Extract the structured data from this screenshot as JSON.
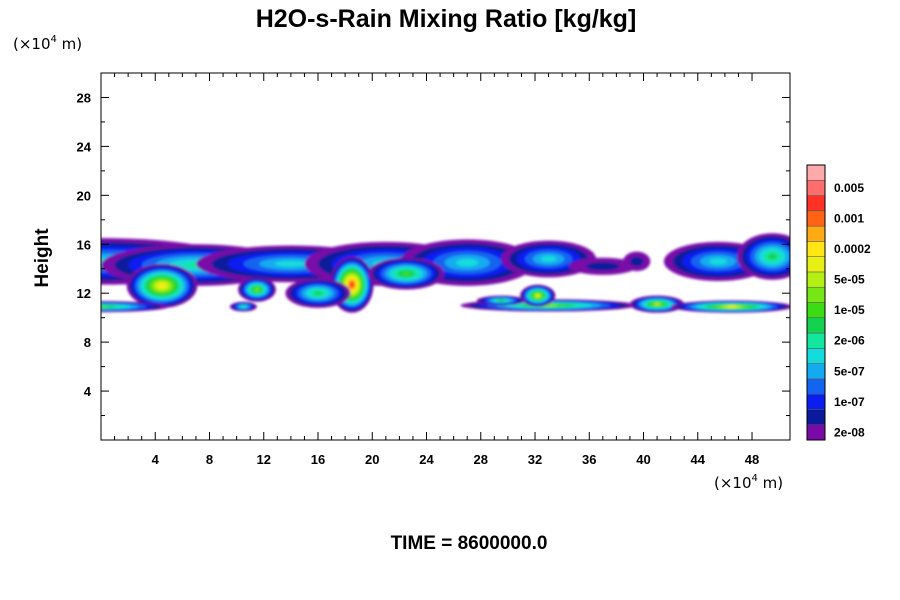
{
  "chart_data": {
    "type": "heatmap",
    "title": "H2O-s-Rain Mixing Ratio [kg/kg]",
    "ylabel": "Height",
    "xlabel": "",
    "x_unit": {
      "prefix": "(×10",
      "exp": "4",
      "suffix": " m)"
    },
    "y_unit": {
      "prefix": "(×10",
      "exp": "4",
      "suffix": " m)"
    },
    "xlim": [
      0,
      50.8
    ],
    "ylim": [
      0,
      30
    ],
    "x_ticks": [
      4,
      8,
      12,
      16,
      20,
      24,
      28,
      32,
      36,
      40,
      44,
      48
    ],
    "x_tick_labels": [
      "4",
      "8",
      "12",
      "16",
      "20",
      "24",
      "28",
      "32",
      "36",
      "40",
      "44",
      "48"
    ],
    "y_ticks": [
      4,
      8,
      12,
      16,
      20,
      24,
      28
    ],
    "y_tick_labels": [
      "4",
      "8",
      "12",
      "16",
      "20",
      "24",
      "28"
    ],
    "levels": [
      {
        "color": "#7a0aa8",
        "label": "2e-08"
      },
      {
        "color": "#0a1a9a",
        "label": ""
      },
      {
        "color": "#0a1ef0",
        "label": "1e-07"
      },
      {
        "color": "#1464f0",
        "label": ""
      },
      {
        "color": "#14aaf0",
        "label": "5e-07"
      },
      {
        "color": "#14dcdc",
        "label": ""
      },
      {
        "color": "#14e6a0",
        "label": "2e-06"
      },
      {
        "color": "#14d250",
        "label": ""
      },
      {
        "color": "#3cdc14",
        "label": "1e-05"
      },
      {
        "color": "#78e614",
        "label": ""
      },
      {
        "color": "#b4f014",
        "label": "5e-05"
      },
      {
        "color": "#e6f014",
        "label": ""
      },
      {
        "color": "#ffe614",
        "label": "0.0002"
      },
      {
        "color": "#ffaa14",
        "label": ""
      },
      {
        "color": "#ff6414",
        "label": "0.001"
      },
      {
        "color": "#ff3228",
        "label": ""
      },
      {
        "color": "#ff6e6e",
        "label": "0.005"
      },
      {
        "color": "#ffaaaa",
        "label": ""
      }
    ],
    "blobs": [
      {
        "x": 0.0,
        "y": 14.6,
        "rx": 10,
        "ry": 1.9,
        "v": 5
      },
      {
        "x": 7.0,
        "y": 14.3,
        "rx": 7.0,
        "ry": 1.7,
        "v": 6
      },
      {
        "x": 14.0,
        "y": 14.4,
        "rx": 7.0,
        "ry": 1.5,
        "v": 5
      },
      {
        "x": 21.0,
        "y": 14.4,
        "rx": 6.0,
        "ry": 1.8,
        "v": 5
      },
      {
        "x": 27.0,
        "y": 14.5,
        "rx": 5.0,
        "ry": 1.9,
        "v": 5
      },
      {
        "x": 33.0,
        "y": 14.8,
        "rx": 3.5,
        "ry": 1.5,
        "v": 5
      },
      {
        "x": 4.5,
        "y": 12.6,
        "rx": 2.6,
        "ry": 1.8,
        "v": 12
      },
      {
        "x": 11.5,
        "y": 12.3,
        "rx": 1.4,
        "ry": 1.0,
        "v": 9
      },
      {
        "x": 18.5,
        "y": 12.7,
        "rx": 1.6,
        "ry": 2.3,
        "v": 15
      },
      {
        "x": 22.5,
        "y": 13.6,
        "rx": 2.8,
        "ry": 1.3,
        "v": 8
      },
      {
        "x": 16.0,
        "y": 12.0,
        "rx": 2.4,
        "ry": 1.2,
        "v": 7
      },
      {
        "x": 37.0,
        "y": 14.2,
        "rx": 2.5,
        "ry": 0.7,
        "v": 1
      },
      {
        "x": 39.5,
        "y": 14.6,
        "rx": 1.0,
        "ry": 0.8,
        "v": 1
      },
      {
        "x": 45.5,
        "y": 14.6,
        "rx": 4.0,
        "ry": 1.6,
        "v": 5
      },
      {
        "x": 49.5,
        "y": 15.0,
        "rx": 2.6,
        "ry": 1.9,
        "v": 7
      },
      {
        "x": 0.0,
        "y": 10.9,
        "rx": 5.0,
        "ry": 0.45,
        "v": 8
      },
      {
        "x": 10.5,
        "y": 10.9,
        "rx": 1.0,
        "ry": 0.4,
        "v": 6
      },
      {
        "x": 33.0,
        "y": 11.0,
        "rx": 6.5,
        "ry": 0.5,
        "v": 9
      },
      {
        "x": 32.2,
        "y": 11.8,
        "rx": 1.3,
        "ry": 0.9,
        "v": 11
      },
      {
        "x": 41.0,
        "y": 11.1,
        "rx": 2.0,
        "ry": 0.7,
        "v": 10
      },
      {
        "x": 46.5,
        "y": 10.9,
        "rx": 4.5,
        "ry": 0.5,
        "v": 11
      },
      {
        "x": 29.5,
        "y": 11.4,
        "rx": 1.8,
        "ry": 0.4,
        "v": 7
      }
    ]
  },
  "footer": {
    "time": "TIME = 8600000.0"
  }
}
